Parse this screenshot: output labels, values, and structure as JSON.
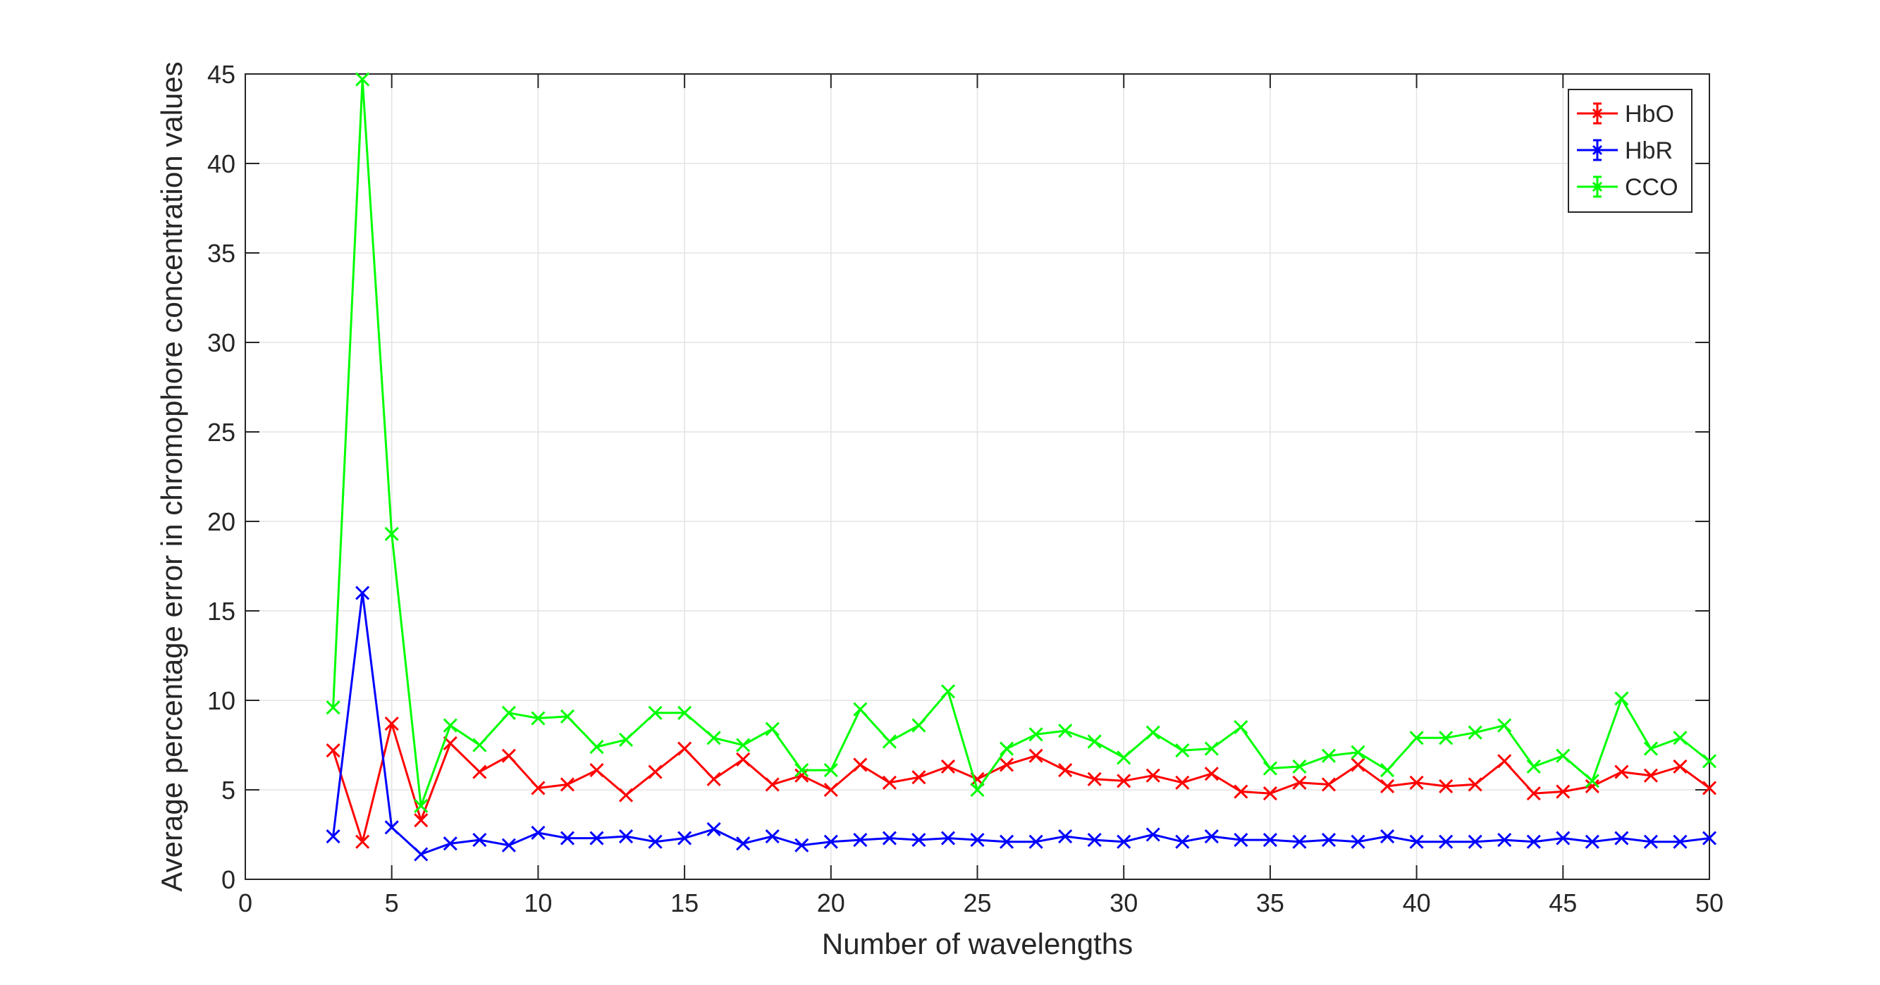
{
  "chart_data": {
    "type": "line",
    "title": "",
    "xlabel": "Number of wavelengths",
    "ylabel": "Average percentage error in chromophore concentration values",
    "xlim": [
      0,
      50
    ],
    "ylim": [
      0,
      45
    ],
    "xticks": [
      0,
      5,
      10,
      15,
      20,
      25,
      30,
      35,
      40,
      45,
      50
    ],
    "yticks": [
      0,
      5,
      10,
      15,
      20,
      25,
      30,
      35,
      40,
      45
    ],
    "grid": true,
    "legend_position": "top-right",
    "marker": "x",
    "x": [
      3,
      4,
      5,
      6,
      7,
      8,
      9,
      10,
      11,
      12,
      13,
      14,
      15,
      16,
      17,
      18,
      19,
      20,
      21,
      22,
      23,
      24,
      25,
      26,
      27,
      28,
      29,
      30,
      31,
      32,
      33,
      34,
      35,
      36,
      37,
      38,
      39,
      40,
      41,
      42,
      43,
      44,
      45,
      46,
      47,
      48,
      49,
      50
    ],
    "series": [
      {
        "name": "HbO",
        "color": "#ff0000",
        "values": [
          7.2,
          2.1,
          8.7,
          3.3,
          7.6,
          6.0,
          6.9,
          5.1,
          5.3,
          6.1,
          4.7,
          6.0,
          7.3,
          5.6,
          6.7,
          5.3,
          5.8,
          5.0,
          6.4,
          5.4,
          5.7,
          6.3,
          5.6,
          6.4,
          6.9,
          6.1,
          5.6,
          5.5,
          5.8,
          5.4,
          5.9,
          4.9,
          4.8,
          5.4,
          5.3,
          6.4,
          5.2,
          5.4,
          5.2,
          5.3,
          6.6,
          4.8,
          4.9,
          5.2,
          6.0,
          5.8,
          6.3,
          5.1
        ]
      },
      {
        "name": "HbR",
        "color": "#0000ff",
        "values": [
          2.4,
          16.0,
          2.9,
          1.4,
          2.0,
          2.2,
          1.9,
          2.6,
          2.3,
          2.3,
          2.4,
          2.1,
          2.3,
          2.8,
          2.0,
          2.4,
          1.9,
          2.1,
          2.2,
          2.3,
          2.2,
          2.3,
          2.2,
          2.1,
          2.1,
          2.4,
          2.2,
          2.1,
          2.5,
          2.1,
          2.4,
          2.2,
          2.2,
          2.1,
          2.2,
          2.1,
          2.4,
          2.1,
          2.1,
          2.1,
          2.2,
          2.1,
          2.3,
          2.1,
          2.3,
          2.1,
          2.1,
          2.3
        ]
      },
      {
        "name": "CCO",
        "color": "#00ff00",
        "values": [
          9.6,
          44.7,
          19.3,
          4.1,
          8.6,
          7.5,
          9.3,
          9.0,
          9.1,
          7.4,
          7.8,
          9.3,
          9.3,
          7.9,
          7.5,
          8.4,
          6.1,
          6.1,
          9.5,
          7.7,
          8.6,
          10.5,
          5.0,
          7.3,
          8.1,
          8.3,
          7.7,
          6.8,
          8.2,
          7.2,
          7.3,
          8.5,
          6.2,
          6.3,
          6.9,
          7.1,
          6.1,
          7.9,
          7.9,
          8.2,
          8.6,
          6.3,
          6.9,
          5.5,
          10.1,
          7.3,
          7.9,
          6.6
        ]
      }
    ]
  }
}
